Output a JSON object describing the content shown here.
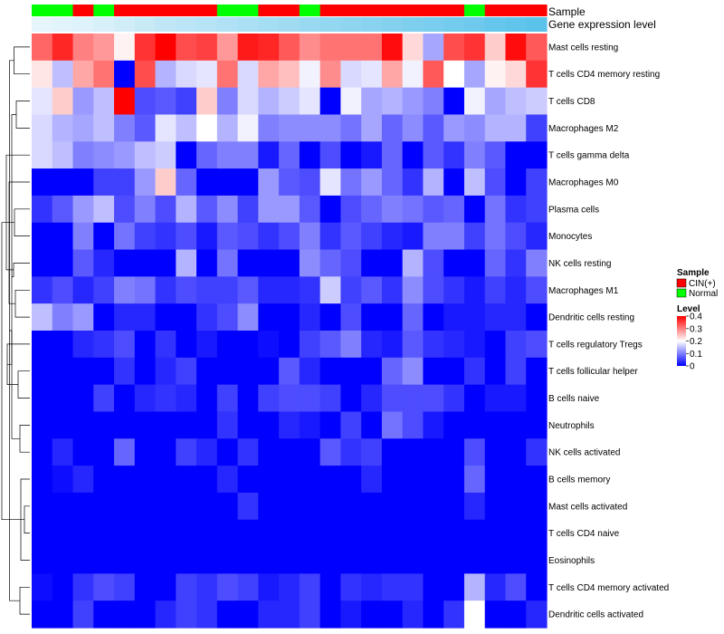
{
  "chart_data": {
    "type": "heatmap",
    "track_labels": {
      "sample": "Sample",
      "expression": "Gene expression level"
    },
    "sample_groups": [
      "N",
      "N",
      "C",
      "N",
      "C",
      "C",
      "C",
      "C",
      "C",
      "N",
      "N",
      "C",
      "C",
      "N",
      "C",
      "C",
      "C",
      "C",
      "C",
      "C",
      "C",
      "N",
      "C",
      "C",
      "C"
    ],
    "expression_track": [
      0.05,
      0.07,
      0.1,
      0.13,
      0.17,
      0.21,
      0.25,
      0.28,
      0.31,
      0.34,
      0.37,
      0.4,
      0.43,
      0.46,
      0.49,
      0.52,
      0.55,
      0.58,
      0.61,
      0.64,
      0.67,
      0.7,
      0.74,
      0.77,
      0.8
    ],
    "rows": [
      "Mast cells resting",
      "T cells CD4 memory resting",
      "T cells CD8",
      "Macrophages M2",
      "T cells gamma delta",
      "Macrophages M0",
      "Plasma cells",
      "Monocytes",
      "NK cells resting",
      "Macrophages M1",
      "Dendritic cells resting",
      "T cells regulatory  Tregs",
      "T cells follicular helper",
      "B cells naive",
      "Neutrophils",
      "NK cells activated",
      "B cells memory",
      "Mast cells activated",
      "T cells CD4 naive",
      "Eosinophils",
      "T cells CD4 memory activated",
      "Dendritic cells activated"
    ],
    "values": [
      [
        0.32,
        0.37,
        0.3,
        0.28,
        0.21,
        0.36,
        0.4,
        0.34,
        0.35,
        0.28,
        0.38,
        0.37,
        0.33,
        0.29,
        0.31,
        0.31,
        0.31,
        0.39,
        0.23,
        0.13,
        0.34,
        0.36,
        0.24,
        0.39,
        0.33
      ],
      [
        0.22,
        0.15,
        0.27,
        0.31,
        0.0,
        0.34,
        0.14,
        0.17,
        0.18,
        0.31,
        0.17,
        0.27,
        0.25,
        0.19,
        0.29,
        0.17,
        0.18,
        0.27,
        0.19,
        0.33,
        0.2,
        0.13,
        0.21,
        0.23,
        0.36
      ],
      [
        0.18,
        0.24,
        0.12,
        0.15,
        0.4,
        0.06,
        0.07,
        0.05,
        0.24,
        0.1,
        0.17,
        0.14,
        0.16,
        0.18,
        0.0,
        0.19,
        0.13,
        0.14,
        0.12,
        0.1,
        0.0,
        0.19,
        0.13,
        0.15,
        0.16
      ],
      [
        0.17,
        0.14,
        0.13,
        0.15,
        0.1,
        0.07,
        0.18,
        0.15,
        0.2,
        0.14,
        0.19,
        0.1,
        0.11,
        0.11,
        0.11,
        0.09,
        0.13,
        0.08,
        0.11,
        0.07,
        0.12,
        0.11,
        0.14,
        0.14,
        0.05
      ],
      [
        0.17,
        0.15,
        0.1,
        0.11,
        0.12,
        0.15,
        0.16,
        0.0,
        0.08,
        0.1,
        0.1,
        0.02,
        0.08,
        0.0,
        0.06,
        0.0,
        0.02,
        0.08,
        0.0,
        0.07,
        0.04,
        0.1,
        0.07,
        0.0,
        0.0
      ],
      [
        0.0,
        0.0,
        0.0,
        0.05,
        0.05,
        0.12,
        0.24,
        0.08,
        0.0,
        0.0,
        0.0,
        0.12,
        0.07,
        0.06,
        0.18,
        0.09,
        0.12,
        0.08,
        0.04,
        0.14,
        0.0,
        0.15,
        0.06,
        0.0,
        0.05
      ],
      [
        0.04,
        0.07,
        0.12,
        0.15,
        0.06,
        0.1,
        0.06,
        0.14,
        0.07,
        0.11,
        0.05,
        0.12,
        0.12,
        0.07,
        0.0,
        0.06,
        0.08,
        0.1,
        0.09,
        0.07,
        0.08,
        0.0,
        0.09,
        0.04,
        0.05
      ],
      [
        0.0,
        0.0,
        0.1,
        0.0,
        0.09,
        0.05,
        0.04,
        0.06,
        0.02,
        0.07,
        0.06,
        0.04,
        0.06,
        0.1,
        0.04,
        0.07,
        0.05,
        0.03,
        0.02,
        0.1,
        0.1,
        0.05,
        0.09,
        0.06,
        0.03
      ],
      [
        0.0,
        0.0,
        0.07,
        0.03,
        0.0,
        0.0,
        0.0,
        0.14,
        0.0,
        0.09,
        0.0,
        0.0,
        0.0,
        0.11,
        0.08,
        0.06,
        0.0,
        0.0,
        0.14,
        0.06,
        0.0,
        0.0,
        0.08,
        0.04,
        0.1
      ],
      [
        0.04,
        0.06,
        0.03,
        0.05,
        0.1,
        0.09,
        0.04,
        0.06,
        0.05,
        0.05,
        0.07,
        0.03,
        0.03,
        0.04,
        0.16,
        0.05,
        0.07,
        0.04,
        0.11,
        0.06,
        0.04,
        0.02,
        0.05,
        0.03,
        0.06
      ],
      [
        0.15,
        0.1,
        0.12,
        0.0,
        0.03,
        0.03,
        0.0,
        0.0,
        0.04,
        0.06,
        0.11,
        0.0,
        0.0,
        0.03,
        0.0,
        0.06,
        0.0,
        0.0,
        0.08,
        0.0,
        0.02,
        0.02,
        0.03,
        0.03,
        0.0
      ],
      [
        0.0,
        0.0,
        0.03,
        0.04,
        0.06,
        0.0,
        0.04,
        0.0,
        0.02,
        0.0,
        0.0,
        0.01,
        0.0,
        0.05,
        0.07,
        0.1,
        0.03,
        0.02,
        0.07,
        0.04,
        0.03,
        0.02,
        0.0,
        0.05,
        0.06
      ],
      [
        0.0,
        0.0,
        0.0,
        0.0,
        0.04,
        0.0,
        0.03,
        0.05,
        0.0,
        0.0,
        0.0,
        0.0,
        0.07,
        0.03,
        0.0,
        0.0,
        0.0,
        0.08,
        0.11,
        0.0,
        0.0,
        0.04,
        0.0,
        0.05,
        0.0
      ],
      [
        0.0,
        0.0,
        0.0,
        0.05,
        0.0,
        0.03,
        0.04,
        0.03,
        0.0,
        0.05,
        0.0,
        0.05,
        0.06,
        0.06,
        0.05,
        0.0,
        0.03,
        0.06,
        0.06,
        0.06,
        0.04,
        0.0,
        0.02,
        0.02,
        0.0
      ],
      [
        0.0,
        0.0,
        0.0,
        0.0,
        0.0,
        0.0,
        0.0,
        0.0,
        0.0,
        0.04,
        0.0,
        0.0,
        0.03,
        0.02,
        0.0,
        0.05,
        0.0,
        0.09,
        0.06,
        0.02,
        0.0,
        0.0,
        0.0,
        0.0,
        0.0
      ],
      [
        0.0,
        0.03,
        0.0,
        0.0,
        0.08,
        0.0,
        0.0,
        0.05,
        0.03,
        0.0,
        0.04,
        0.0,
        0.0,
        0.0,
        0.07,
        0.04,
        0.05,
        0.0,
        0.0,
        0.0,
        0.0,
        0.06,
        0.0,
        0.0,
        0.04
      ],
      [
        0.0,
        0.01,
        0.03,
        0.0,
        0.0,
        0.0,
        0.0,
        0.0,
        0.0,
        0.03,
        0.0,
        0.0,
        0.0,
        0.0,
        0.0,
        0.0,
        0.03,
        0.0,
        0.0,
        0.0,
        0.0,
        0.08,
        0.0,
        0.0,
        0.0
      ],
      [
        0.0,
        0.0,
        0.0,
        0.0,
        0.0,
        0.0,
        0.0,
        0.0,
        0.0,
        0.0,
        0.04,
        0.0,
        0.0,
        0.0,
        0.0,
        0.0,
        0.0,
        0.0,
        0.0,
        0.0,
        0.0,
        0.03,
        0.0,
        0.0,
        0.0
      ],
      [
        0.0,
        0.0,
        0.0,
        0.0,
        0.0,
        0.0,
        0.0,
        0.0,
        0.0,
        0.0,
        0.0,
        0.0,
        0.0,
        0.0,
        0.0,
        0.0,
        0.0,
        0.0,
        0.0,
        0.0,
        0.0,
        0.0,
        0.0,
        0.0,
        0.0
      ],
      [
        0.0,
        0.0,
        0.0,
        0.0,
        0.0,
        0.0,
        0.0,
        0.0,
        0.0,
        0.0,
        0.0,
        0.0,
        0.0,
        0.0,
        0.0,
        0.0,
        0.0,
        0.0,
        0.0,
        0.0,
        0.0,
        0.0,
        0.0,
        0.0,
        0.0
      ],
      [
        0.01,
        0.0,
        0.04,
        0.06,
        0.05,
        0.0,
        0.0,
        0.05,
        0.04,
        0.06,
        0.05,
        0.02,
        0.03,
        0.05,
        0.0,
        0.04,
        0.03,
        0.04,
        0.04,
        0.0,
        0.0,
        0.14,
        0.03,
        0.06,
        0.0
      ],
      [
        0.0,
        0.0,
        0.05,
        0.0,
        0.0,
        0.0,
        0.03,
        0.05,
        0.04,
        0.0,
        0.0,
        0.03,
        0.03,
        0.05,
        0.0,
        0.02,
        0.0,
        0.0,
        0.03,
        0.0,
        0.04,
        0.2,
        0.0,
        0.0,
        0.03
      ]
    ],
    "dendrogram": [
      [
        0,
        1,
        0.35
      ],
      [
        2,
        3,
        0.3
      ],
      [
        20,
        21,
        0.22
      ],
      [
        17,
        18,
        0.12
      ],
      [
        19,
        16,
        0.2
      ],
      [
        14,
        15,
        0.22
      ],
      [
        12,
        13,
        0.26
      ],
      [
        26,
        25,
        0.3
      ],
      [
        23,
        27,
        0.4
      ],
      [
        22,
        24,
        0.45
      ],
      [
        11,
        28,
        0.5
      ],
      [
        9,
        10,
        0.32
      ],
      [
        8,
        30,
        0.36
      ],
      [
        6,
        7,
        0.34
      ],
      [
        32,
        31,
        0.4
      ],
      [
        5,
        33,
        0.46
      ],
      [
        4,
        34,
        0.52
      ],
      [
        29,
        35,
        0.62
      ],
      [
        36,
        22,
        0.0
      ],
      [
        35,
        36,
        0.0
      ]
    ],
    "legends": {
      "sample": {
        "title": "Sample",
        "items": [
          {
            "label": "CIN(+)",
            "color": "#ff0000"
          },
          {
            "label": "Normal",
            "color": "#00ff00"
          }
        ]
      },
      "level": {
        "title": "Level",
        "ticks": [
          0,
          0.1,
          0.2,
          0.3,
          0.4
        ],
        "tick_labels": [
          "0",
          "0.1",
          "0.2",
          "0.3",
          "0.4"
        ]
      }
    },
    "color_scale": {
      "min": 0,
      "max": 0.4,
      "low": "#0000ff",
      "mid": "#ffffff",
      "high": "#ff0000"
    },
    "expression_colors": {
      "low": "#e6f5fb",
      "high": "#5bc2ea"
    }
  }
}
